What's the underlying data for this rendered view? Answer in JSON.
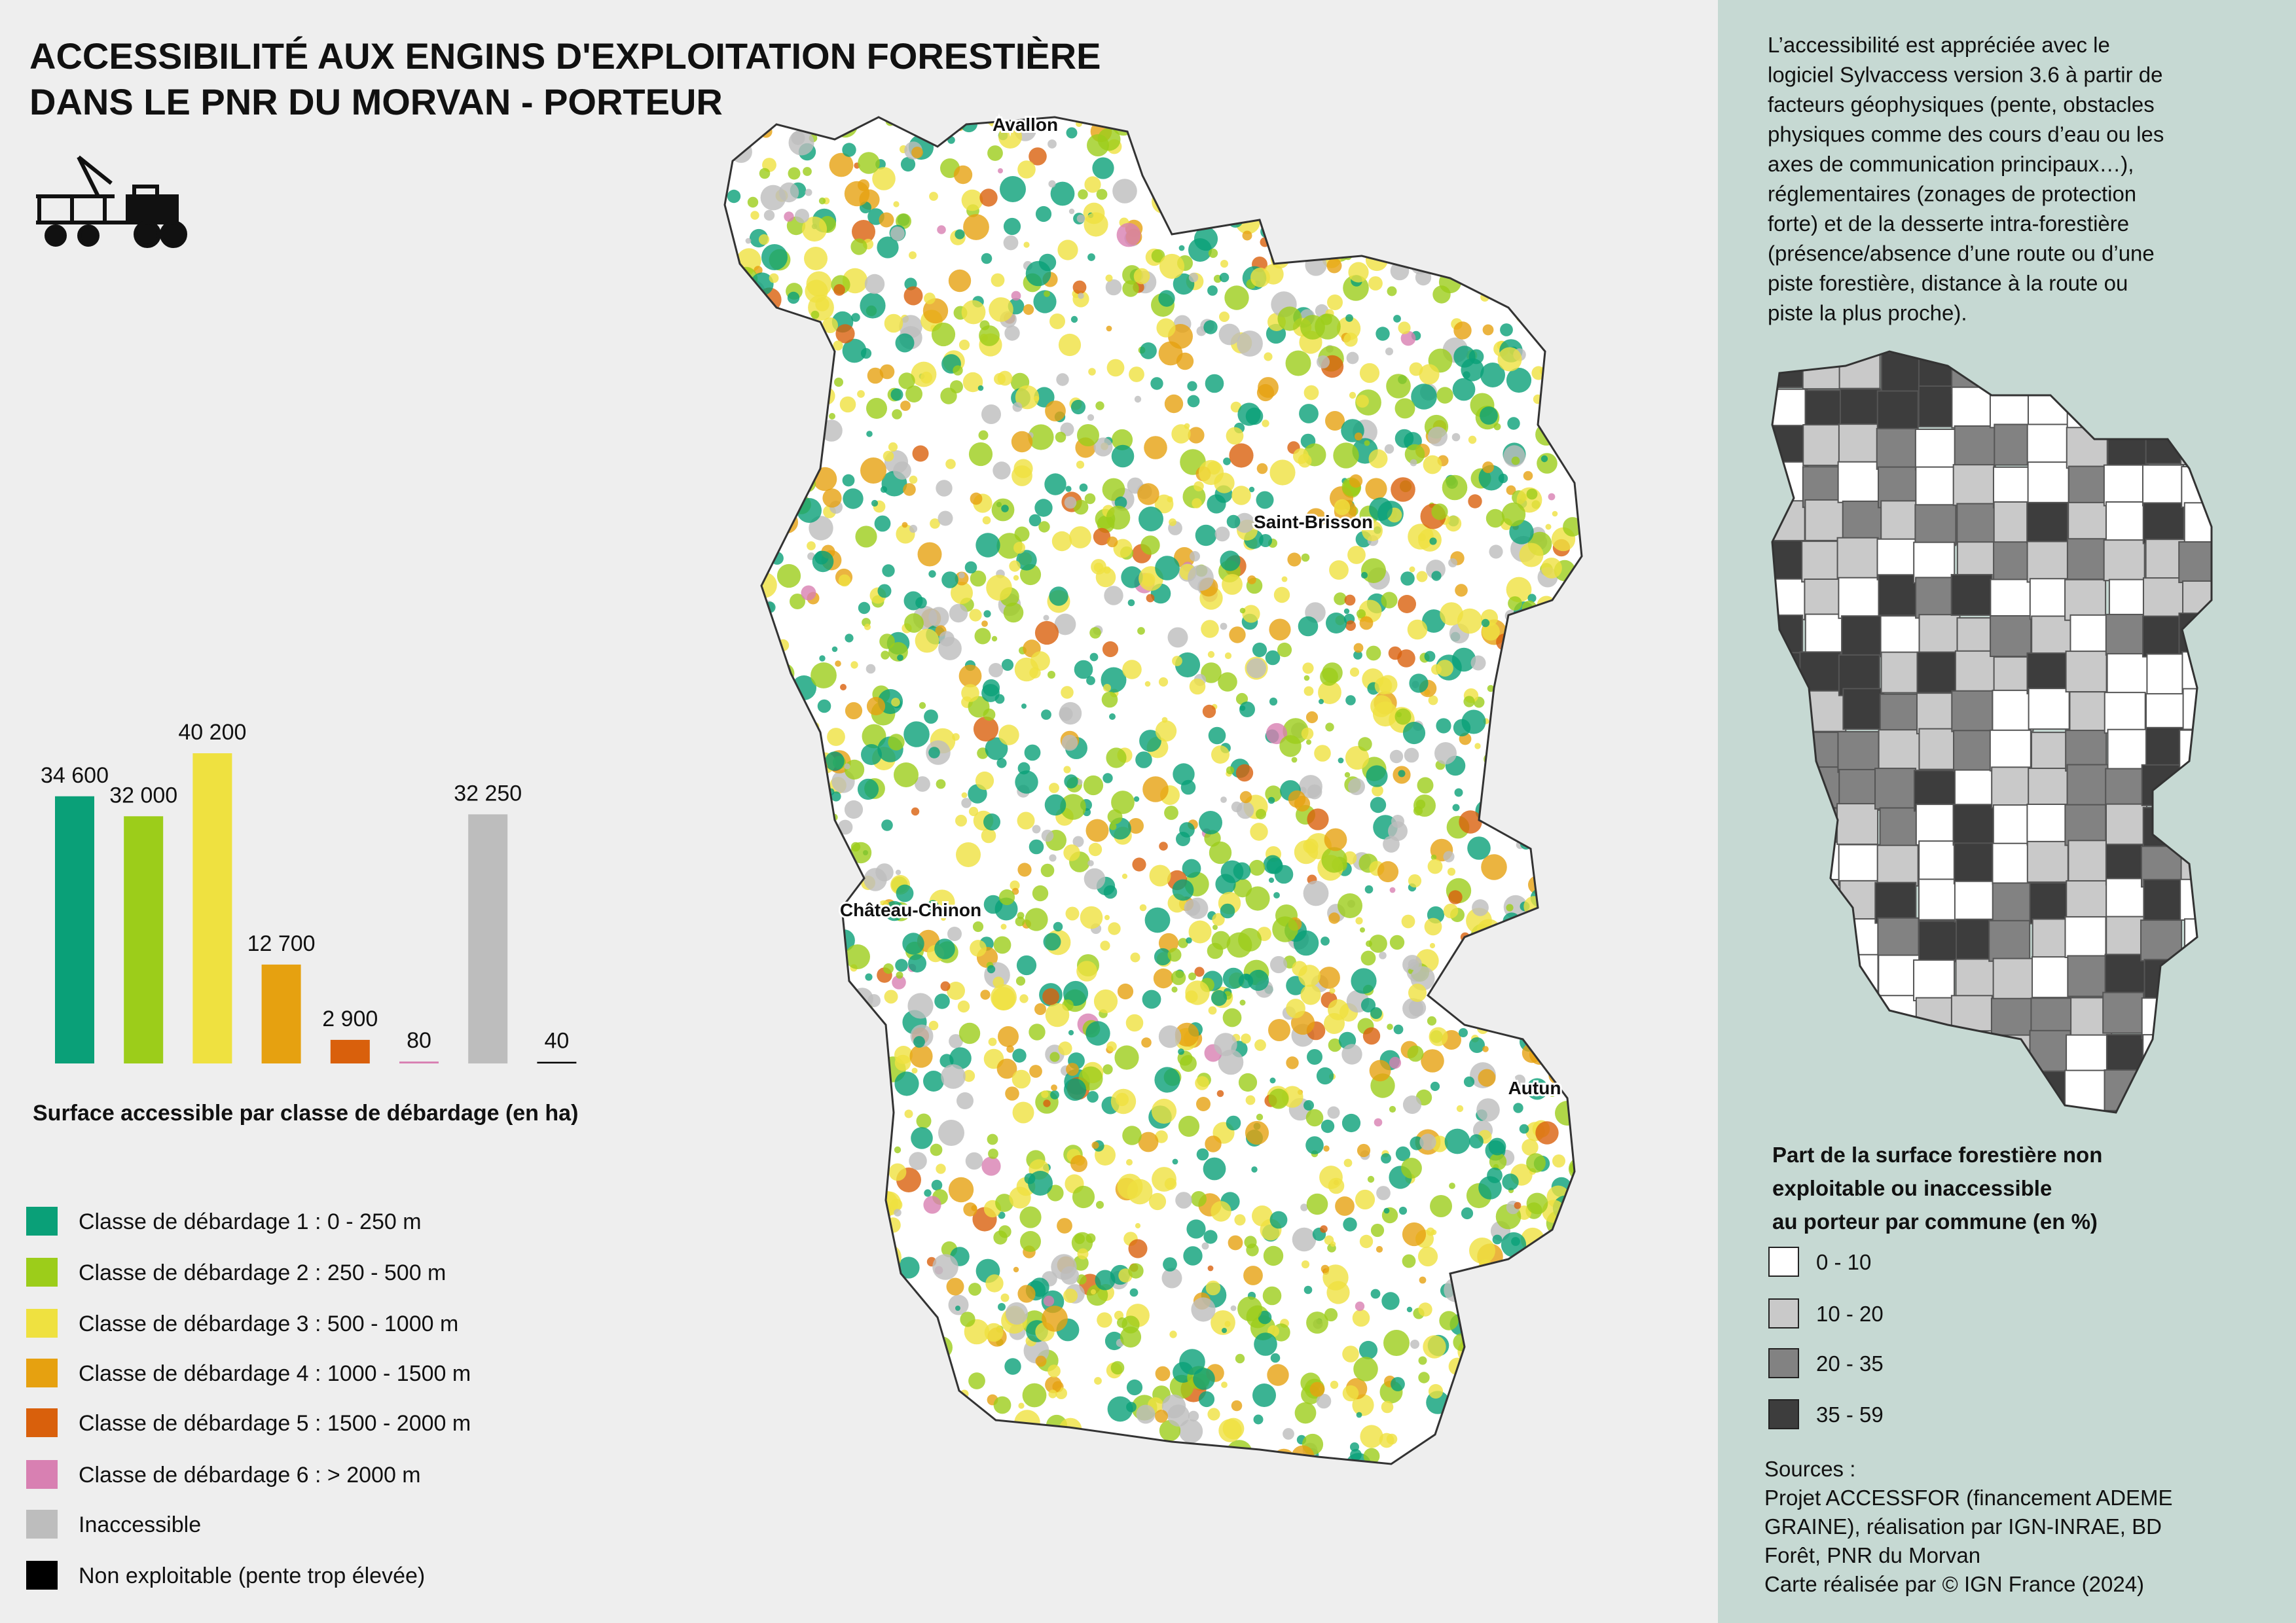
{
  "title": [
    "ACCESSIBILITÉ AUX ENGINS D'EXPLOITATION FORESTIÈRE",
    "DANS LE PNR DU MORVAN - PORTEUR"
  ],
  "chart_data": {
    "type": "bar",
    "xlabel": "Surface accessible par classe de débardage (en ha)",
    "categories": [
      "Classe de débardage 1 : 0 - 250 m",
      "Classe de débardage 2 : 250 - 500 m",
      "Classe de débardage 3 : 500 - 1000 m",
      "Classe de débardage 4 : 1000 - 1500 m",
      "Classe de débardage 5 : 1500 - 2000 m",
      "Classe de débardage 6 : > 2000 m",
      "Inaccessible",
      "Non exploitable (pente trop élevée)"
    ],
    "colors": [
      "#0aa078",
      "#9ccd1a",
      "#efe140",
      "#e6a110",
      "#d9600c",
      "#d880b2",
      "#bdbdbd",
      "#000000"
    ],
    "values": [
      34600,
      32000,
      40200,
      12700,
      2900,
      80,
      32250,
      40
    ],
    "value_labels": [
      "34 600",
      "32 000",
      "40 200",
      "12 700",
      "2 900",
      "80",
      "32 250",
      "40"
    ]
  },
  "map_labels": [
    "Avallon",
    "Saint-Brisson",
    "Château-Chinon",
    "Autun"
  ],
  "description": [
    "L’accessibilité est appréciée avec le",
    "logiciel Sylvaccess version 3.6 à partir de",
    "facteurs géophysiques (pente, obstacles",
    "physiques comme des cours d’eau ou les",
    "axes de communication principaux…),",
    "réglementaires (zonages de protection",
    "forte) et de la desserte intra-forestière",
    "(présence/absence d’une route ou d’une",
    "piste forestière, distance à la route ou",
    "piste la plus proche)."
  ],
  "choropleth_legend": {
    "title": [
      "Part de la surface forestière non",
      "exploitable ou inaccessible",
      "au porteur par commune (en %)"
    ],
    "classes": [
      {
        "label": "0 - 10",
        "color": "#ffffff"
      },
      {
        "label": "10 - 20",
        "color": "#c9c9c9"
      },
      {
        "label": "20 - 35",
        "color": "#828282"
      },
      {
        "label": "35 - 59",
        "color": "#3d3d3d"
      }
    ]
  },
  "sources": [
    "Sources :",
    "Projet ACCESSFOR (financement ADEME",
    "GRAINE), réalisation par IGN-INRAE, BD",
    "Forêt, PNR du Morvan",
    "Carte réalisée par © IGN France (2024)"
  ]
}
